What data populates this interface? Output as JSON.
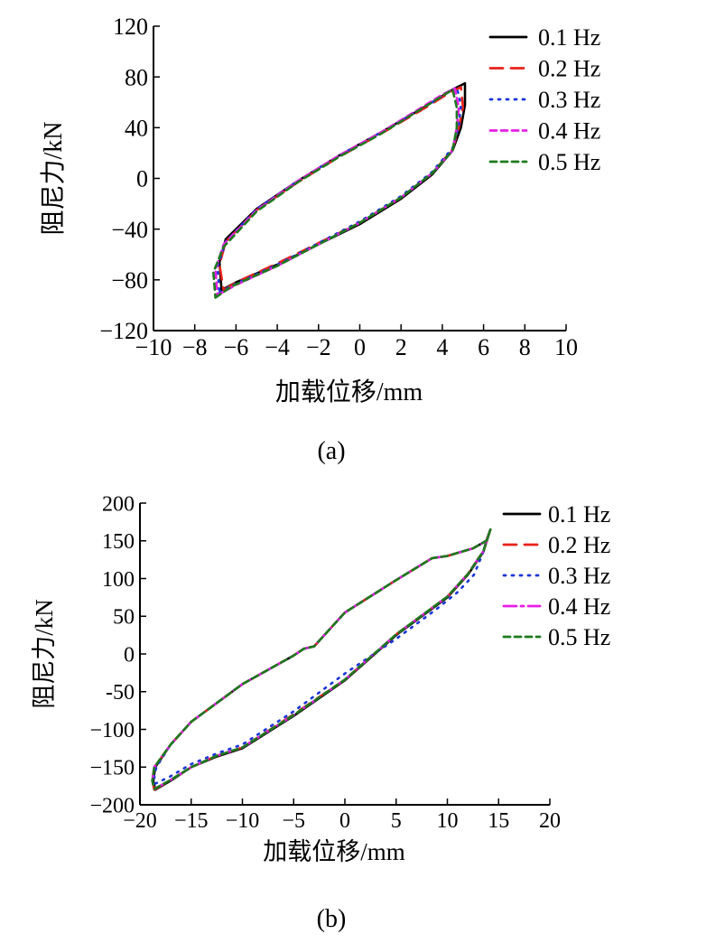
{
  "chart_data": [
    {
      "type": "line",
      "caption": "(a)",
      "xlabel": "加载位移/mm",
      "ylabel": "阻尼力/kN",
      "xlim": [
        -10,
        10
      ],
      "ylim": [
        -120,
        120
      ],
      "xticks": [
        -10,
        -8,
        -6,
        -4,
        -2,
        0,
        2,
        4,
        6,
        8,
        10
      ],
      "yticks": [
        -120,
        -80,
        -40,
        0,
        40,
        80,
        120
      ],
      "xtick_labels": [
        "−10",
        "−8",
        "−6",
        "−4",
        "−2",
        "0",
        "2",
        "4",
        "6",
        "8",
        "10"
      ],
      "ytick_labels": [
        "−120",
        "−80",
        "−40",
        "0",
        "40",
        "80",
        "120"
      ],
      "legend_position": "top-right",
      "series": [
        {
          "name": "0.1 Hz",
          "color": "#000000",
          "dash": "solid",
          "x": [
            -6.7,
            -6.0,
            -4.0,
            -2.0,
            0.0,
            2.0,
            3.5,
            4.5,
            4.9,
            5.1,
            5.1,
            4.5,
            3.0,
            1.0,
            -1.0,
            -3.0,
            -5.0,
            -6.5,
            -6.8,
            -6.7
          ],
          "y": [
            -88,
            -82,
            -68,
            -52,
            -36,
            -16,
            3,
            22,
            40,
            58,
            75,
            70,
            55,
            36,
            18,
            -2,
            -24,
            -48,
            -66,
            -88
          ]
        },
        {
          "name": "0.2 Hz",
          "color": "#e8221b",
          "dash": "long",
          "x": [
            -6.6,
            -6.0,
            -4.0,
            -2.0,
            0.0,
            2.0,
            3.5,
            4.5,
            4.8,
            5.0,
            4.9,
            4.4,
            3.0,
            1.0,
            -1.0,
            -3.0,
            -5.0,
            -6.5,
            -6.8,
            -6.6
          ],
          "y": [
            -88,
            -82,
            -67,
            -51,
            -35,
            -15,
            4,
            23,
            40,
            56,
            72,
            68,
            54,
            35,
            17,
            -3,
            -25,
            -50,
            -68,
            -88
          ]
        },
        {
          "name": "0.3 Hz",
          "color": "#1a35d8",
          "dash": "dot",
          "x": [
            -6.8,
            -6.0,
            -4.0,
            -2.0,
            0.0,
            2.0,
            3.5,
            4.5,
            4.8,
            4.9,
            4.7,
            4.2,
            3.0,
            1.0,
            -1.0,
            -3.0,
            -5.0,
            -6.5,
            -6.9,
            -6.8
          ],
          "y": [
            -90,
            -83,
            -68,
            -51,
            -34,
            -14,
            5,
            24,
            42,
            58,
            72,
            67,
            55,
            36,
            18,
            -2,
            -24,
            -50,
            -70,
            -90
          ]
        },
        {
          "name": "0.4 Hz",
          "color": "#e61ee6",
          "dash": "medium",
          "x": [
            -6.9,
            -6.0,
            -4.0,
            -2.0,
            0.0,
            2.0,
            3.5,
            4.5,
            4.7,
            4.8,
            4.6,
            4.0,
            2.8,
            1.0,
            -1.0,
            -3.0,
            -5.0,
            -6.6,
            -7.0,
            -6.9
          ],
          "y": [
            -92,
            -84,
            -69,
            -52,
            -35,
            -15,
            4,
            22,
            40,
            56,
            71,
            66,
            54,
            36,
            18,
            -2,
            -25,
            -52,
            -72,
            -92
          ]
        },
        {
          "name": "0.5 Hz",
          "color": "#1c7a1c",
          "dash": "medium",
          "x": [
            -7.0,
            -6.2,
            -4.0,
            -2.0,
            0.0,
            2.0,
            3.5,
            4.5,
            4.7,
            4.7,
            4.5,
            4.0,
            2.8,
            1.0,
            -1.0,
            -3.0,
            -5.0,
            -6.6,
            -7.1,
            -7.0
          ],
          "y": [
            -94,
            -85,
            -69,
            -52,
            -35,
            -15,
            4,
            22,
            40,
            56,
            70,
            65,
            53,
            35,
            17,
            -3,
            -26,
            -54,
            -74,
            -94
          ]
        }
      ]
    },
    {
      "type": "line",
      "caption": "(b)",
      "xlabel": "加载位移/mm",
      "ylabel": "阻尼力/kN",
      "xlim": [
        -20,
        20
      ],
      "ylim": [
        -200,
        200
      ],
      "xticks": [
        -20,
        -15,
        -10,
        -5,
        0,
        5,
        10,
        15,
        20
      ],
      "yticks": [
        -200,
        -150,
        -100,
        -50,
        0,
        50,
        100,
        150,
        200
      ],
      "xtick_labels": [
        "−20",
        "−15",
        "−10",
        "−5",
        "0",
        "5",
        "10",
        "15",
        "20"
      ],
      "ytick_labels": [
        "−200",
        "−150",
        "−100",
        "-50",
        "0",
        "50",
        "100",
        "150",
        "200"
      ],
      "legend_position": "top-right",
      "series": [
        {
          "name": "0.1 Hz",
          "color": "#000000",
          "dash": "solid",
          "x": [
            -18.5,
            -17.0,
            -15.0,
            -12.5,
            -10.0,
            -5.0,
            0.0,
            5.0,
            10.0,
            12.0,
            13.5,
            14.2,
            13.8,
            12.5,
            10.0,
            8.5,
            5.0,
            0.0,
            -3.0,
            -4.0,
            -5.0,
            -10.0,
            -15.0,
            -17.0,
            -18.5,
            -18.7,
            -18.5
          ],
          "y": [
            -180,
            -168,
            -150,
            -136,
            -125,
            -82,
            -35,
            25,
            75,
            105,
            135,
            165,
            150,
            140,
            130,
            127,
            98,
            55,
            10,
            7,
            -2,
            -40,
            -90,
            -120,
            -150,
            -168,
            -180
          ]
        },
        {
          "name": "0.2 Hz",
          "color": "#e8221b",
          "dash": "long",
          "x": [
            -18.6,
            -17.0,
            -15.0,
            -12.5,
            -10.0,
            -5.0,
            0.0,
            5.0,
            10.0,
            12.0,
            13.5,
            14.2,
            13.8,
            12.5,
            10.0,
            8.5,
            5.0,
            0.0,
            -3.0,
            -4.0,
            -5.0,
            -10.0,
            -15.0,
            -17.0,
            -18.6,
            -18.8,
            -18.6
          ],
          "y": [
            -180,
            -167,
            -150,
            -135,
            -124,
            -80,
            -34,
            26,
            76,
            106,
            136,
            165,
            150,
            140,
            130,
            127,
            98,
            55,
            10,
            7,
            -2,
            -40,
            -90,
            -120,
            -150,
            -168,
            -180
          ]
        },
        {
          "name": "0.3 Hz",
          "color": "#1a35d8",
          "dash": "dot",
          "x": [
            -18.5,
            -17.0,
            -15.0,
            -12.5,
            -10.0,
            -5.0,
            0.0,
            5.0,
            9.0,
            11.0,
            12.6,
            13.5,
            13.8,
            12.5,
            10.0,
            8.5,
            5.0,
            0.0,
            -3.0,
            -4.0,
            -5.0,
            -10.0,
            -15.0,
            -17.0,
            -18.4,
            -18.6,
            -18.5
          ],
          "y": [
            -172,
            -162,
            -146,
            -132,
            -120,
            -76,
            -26,
            20,
            60,
            82,
            105,
            135,
            150,
            140,
            130,
            127,
            98,
            55,
            10,
            7,
            -2,
            -40,
            -90,
            -120,
            -150,
            -162,
            -172
          ]
        },
        {
          "name": "0.4 Hz",
          "color": "#e61ee6",
          "dash": "dashdot",
          "x": [
            -18.6,
            -17.0,
            -15.0,
            -12.5,
            -10.0,
            -5.0,
            0.0,
            5.0,
            10.0,
            12.0,
            13.5,
            14.2,
            13.8,
            12.5,
            10.0,
            8.5,
            5.0,
            0.0,
            -3.0,
            -4.0,
            -5.0,
            -10.0,
            -15.0,
            -17.0,
            -18.6,
            -18.8,
            -18.6
          ],
          "y": [
            -179,
            -167,
            -150,
            -135,
            -124,
            -81,
            -34,
            26,
            76,
            106,
            136,
            165,
            150,
            140,
            130,
            127,
            98,
            55,
            10,
            7,
            -2,
            -40,
            -90,
            -120,
            -150,
            -168,
            -179
          ]
        },
        {
          "name": "0.5 Hz",
          "color": "#1c7a1c",
          "dash": "medium",
          "x": [
            -18.6,
            -17.0,
            -15.0,
            -12.5,
            -10.0,
            -5.0,
            0.0,
            5.0,
            10.0,
            12.0,
            13.5,
            14.2,
            13.8,
            12.5,
            10.0,
            8.5,
            5.0,
            0.0,
            -3.0,
            -4.0,
            -5.0,
            -10.0,
            -15.0,
            -17.0,
            -18.6,
            -18.8,
            -18.6
          ],
          "y": [
            -179,
            -167,
            -150,
            -135,
            -124,
            -81,
            -34,
            26,
            76,
            106,
            136,
            165,
            150,
            140,
            130,
            127,
            98,
            55,
            10,
            7,
            -2,
            -40,
            -90,
            -120,
            -150,
            -168,
            -179
          ]
        }
      ]
    }
  ]
}
